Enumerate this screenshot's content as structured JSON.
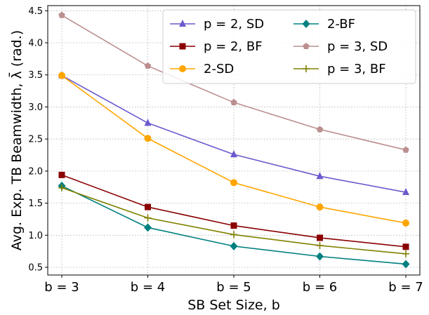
{
  "chart_data": {
    "type": "line",
    "xlabel": "SB Set Size, b",
    "ylabel": "Avg. Exp. TB Beamwidth, λ̄ (rad.)",
    "x": [
      3,
      4,
      5,
      6,
      7
    ],
    "x_tick_labels": [
      "b = 3",
      "b = 4",
      "b = 5",
      "b = 6",
      "b = 7"
    ],
    "y_ticks": [
      "0.5",
      "1.0",
      "1.5",
      "2.0",
      "2.5",
      "3.0",
      "3.5",
      "4.0",
      "4.5"
    ],
    "ylim": [
      0.38,
      4.58
    ],
    "grid": true,
    "legend_position": "top-right",
    "series": [
      {
        "name": "p = 2, SD",
        "color": "#6a5acd",
        "marker": "triangle",
        "values": [
          3.49,
          2.75,
          2.26,
          1.92,
          1.67
        ]
      },
      {
        "name": "p = 2, BF",
        "color": "#8b0000",
        "marker": "square",
        "values": [
          1.94,
          1.44,
          1.15,
          0.96,
          0.82
        ]
      },
      {
        "name": "2-SD",
        "color": "#ffa500",
        "marker": "circle",
        "values": [
          3.49,
          2.51,
          1.82,
          1.44,
          1.19
        ]
      },
      {
        "name": "2-BF",
        "color": "#008080",
        "marker": "diamond",
        "values": [
          1.77,
          1.12,
          0.83,
          0.67,
          0.55
        ]
      },
      {
        "name": "p = 3, SD",
        "color": "#bc8f8f",
        "marker": "pentagon",
        "values": [
          4.43,
          3.64,
          3.07,
          2.65,
          2.33
        ]
      },
      {
        "name": "p = 3, BF",
        "color": "#808000",
        "marker": "plus",
        "values": [
          1.74,
          1.27,
          1.01,
          0.84,
          0.71
        ]
      }
    ]
  }
}
